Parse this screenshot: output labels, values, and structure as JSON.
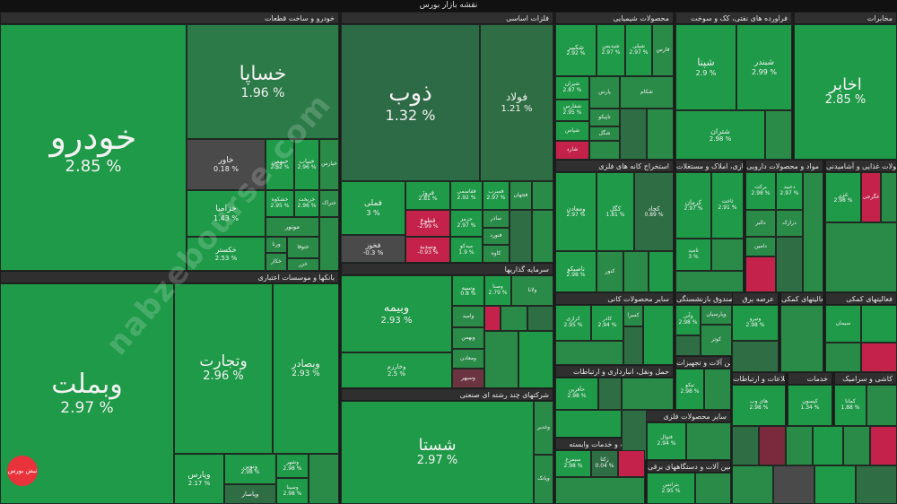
{
  "header": {
    "title": "نقشه بازار بورس"
  },
  "watermark": "nabzebourse.com",
  "logo_text": "نبض بورس",
  "colors": {
    "green_strong": "#1e9e4a",
    "green": "#2a8a48",
    "green_dim": "#2f6e45",
    "gray": "#4a4a4a",
    "red": "#c4224a",
    "dark_red": "#7a2a3c"
  },
  "chart_data": {
    "type": "treemap",
    "sectors": [
      {
        "name": "خودرو و ساخت قطعات",
        "stocks": [
          {
            "name": "خودرو",
            "value": "2.85 %"
          },
          {
            "name": "خساپا",
            "value": "1.96 %"
          },
          {
            "name": "خاور",
            "value": "0.18 %"
          },
          {
            "name": "خبهمن",
            "value": "2.52 %"
          },
          {
            "name": "خنباب",
            "value": "2.96 %"
          },
          {
            "name": "خزامیا",
            "value": "1.43 %"
          },
          {
            "name": "خشکوه",
            "value": "2.95 %"
          },
          {
            "name": "خریخت",
            "value": "2.96 %"
          },
          {
            "name": "خکستر",
            "value": "2.53 %"
          },
          {
            "name": "ختوقا",
            "value": ""
          },
          {
            "name": "خکار",
            "value": ""
          },
          {
            "name": "خزر",
            "value": ""
          },
          {
            "name": "خمهر",
            "value": ""
          },
          {
            "name": "خپارس",
            "value": ""
          },
          {
            "name": "ختراک",
            "value": ""
          },
          {
            "name": "موتور",
            "value": ""
          },
          {
            "name": "ورنا",
            "value": ""
          }
        ]
      },
      {
        "name": "فلزات اساسی",
        "stocks": [
          {
            "name": "ذوب",
            "value": "1.32 %"
          },
          {
            "name": "فولاد",
            "value": "1.21 %"
          },
          {
            "name": "فملی",
            "value": "3 %"
          },
          {
            "name": "فروژ",
            "value": "2.81 %"
          },
          {
            "name": "فقاسمی",
            "value": "2.92 %"
          },
          {
            "name": "فسرب",
            "value": "2.97 %"
          },
          {
            "name": "فخوز",
            "value": "-0.3 %"
          },
          {
            "name": "قطوع",
            "value": "-2.99 %"
          },
          {
            "name": "حرمز",
            "value": "2.97 %"
          },
          {
            "name": "وسدید",
            "value": "-0.93 %"
          },
          {
            "name": "میدکو",
            "value": "1.9 %"
          },
          {
            "name": "فجهان",
            "value": ""
          },
          {
            "name": "فپنتا",
            "value": ""
          },
          {
            "name": "فنورد",
            "value": ""
          },
          {
            "name": "فخاس",
            "value": ""
          },
          {
            "name": "فولاژ",
            "value": ""
          },
          {
            "name": "کاوه",
            "value": ""
          },
          {
            "name": "ساذر",
            "value": ""
          }
        ]
      },
      {
        "name": "محصولات شیمیایی",
        "stocks": [
          {
            "name": "شکبیر",
            "value": "2.92 %"
          },
          {
            "name": "شپدیس",
            "value": "2.97 %"
          },
          {
            "name": "شپلی",
            "value": "2.97 %"
          },
          {
            "name": "فارس",
            "value": ""
          },
          {
            "name": "شیران",
            "value": "2.87 %"
          },
          {
            "name": "پارس",
            "value": ""
          },
          {
            "name": "شکام",
            "value": ""
          },
          {
            "name": "شفارس",
            "value": "2.95 %"
          },
          {
            "name": "تاپیکو",
            "value": ""
          },
          {
            "name": "شپاس",
            "value": ""
          },
          {
            "name": "شگل",
            "value": ""
          },
          {
            "name": "شاراک",
            "value": ""
          },
          {
            "name": "شارد",
            "value": ""
          }
        ]
      },
      {
        "name": "فراورده های نفتی، کک و سوخت",
        "stocks": [
          {
            "name": "شپنا",
            "value": "2.9 %"
          },
          {
            "name": "شبندر",
            "value": "2.99 %"
          },
          {
            "name": "شتران",
            "value": "2.98 %"
          }
        ]
      },
      {
        "name": "مخابرات",
        "stocks": [
          {
            "name": "اخابر",
            "value": "2.85 %"
          }
        ]
      },
      {
        "name": "بانکها و موسسات اعتباری",
        "stocks": [
          {
            "name": "وبملت",
            "value": "2.97 %"
          },
          {
            "name": "وتجارت",
            "value": "2.96 %"
          },
          {
            "name": "وبصادر",
            "value": "2.93 %"
          },
          {
            "name": "وپارس",
            "value": "2.17 %"
          },
          {
            "name": "ونوین",
            "value": "2.98 %"
          },
          {
            "name": "وشهر",
            "value": "2.98 %"
          },
          {
            "name": "وسینا",
            "value": "2.98 %"
          },
          {
            "name": "وپاسار",
            "value": ""
          }
        ]
      },
      {
        "name": "سرمایه گذاریها",
        "stocks": [
          {
            "name": "وصنا",
            "value": "2.79 %"
          },
          {
            "name": "وسپه",
            "value": "0.8 %"
          },
          {
            "name": "وبیمه",
            "value": "2.93 %"
          },
          {
            "name": "وامید",
            "value": ""
          },
          {
            "name": "ولانا",
            "value": ""
          },
          {
            "name": "وخارزم",
            "value": "2.5 %"
          },
          {
            "name": "وبهمن",
            "value": ""
          },
          {
            "name": "ومعادن",
            "value": ""
          },
          {
            "name": "وسپهر",
            "value": ""
          }
        ]
      },
      {
        "name": "شرکتهای چند رشته ای صنعتی",
        "stocks": [
          {
            "name": "شستا",
            "value": "2.97 %"
          },
          {
            "name": "وغدیر",
            "value": ""
          },
          {
            "name": "وپانک",
            "value": ""
          }
        ]
      },
      {
        "name": "استخراج کانه های فلزی",
        "stocks": [
          {
            "name": "ومعادن",
            "value": "2.97 %"
          },
          {
            "name": "کگل",
            "value": "1.81 %"
          },
          {
            "name": "کچاد",
            "value": "0.89 %"
          },
          {
            "name": "تاصیکو",
            "value": "2.98 %"
          },
          {
            "name": "کنور",
            "value": ""
          }
        ]
      },
      {
        "name": "انبوه سازی، املاک و مستغلات",
        "stocks": [
          {
            "name": "کرمان",
            "value": "2.97 %"
          },
          {
            "name": "ثامید",
            "value": "3 %"
          }
        ]
      },
      {
        "name": "مواد و محصولات دارویی",
        "stocks": [
          {
            "name": "برکت",
            "value": "2.98 %"
          },
          {
            "name": "دعبید",
            "value": "2.97 %"
          },
          {
            "name": "دالبر",
            "value": ""
          },
          {
            "name": "دلر",
            "value": ""
          },
          {
            "name": "دامین",
            "value": ""
          },
          {
            "name": "درازک",
            "value": ""
          },
          {
            "name": "ثاخت",
            "value": "2.91 %"
          }
        ]
      },
      {
        "name": "محصولات غذایی و آشامیدنی",
        "stocks": [
          {
            "name": "غزر",
            "value": "2.98 %"
          },
          {
            "name": "غگرجی",
            "value": ""
          }
        ]
      },
      {
        "name": "سایر محصولات کانی",
        "stocks": [
          {
            "name": "کرازی",
            "value": "2.95 %"
          },
          {
            "name": "کاذر",
            "value": "2.94 %"
          },
          {
            "name": "کسرا",
            "value": ""
          }
        ]
      },
      {
        "name": "بیمه وصندوق بازنشستگی",
        "stocks": [
          {
            "name": "وآتی",
            "value": "2.98 %"
          },
          {
            "name": "وپارسیان",
            "value": ""
          },
          {
            "name": "کوثر",
            "value": ""
          }
        ]
      },
      {
        "name": "عرضه برق",
        "stocks": [
          {
            "name": "ونیرو",
            "value": "2.98 %"
          }
        ]
      },
      {
        "name": "فعالیتهای کمکی",
        "stocks": [
          {
            "name": "سیمان",
            "value": ""
          }
        ]
      },
      {
        "name": "حمل ونقل، انبارداری و ارتباطات",
        "stocks": [
          {
            "name": "حآفرین",
            "value": "2.98 %"
          }
        ]
      },
      {
        "name": "ماشین آلات و تجهیزات",
        "stocks": [
          {
            "name": "تیکو",
            "value": "2.98 %"
          }
        ]
      },
      {
        "name": "اطلاعات و ارتباطات",
        "stocks": [
          {
            "name": "های وب",
            "value": "2.98 %"
          }
        ]
      },
      {
        "name": "خدمات",
        "stocks": [
          {
            "name": "کیسون",
            "value": "1.34 %"
          }
        ]
      },
      {
        "name": "کاشی و سرامیک",
        "stocks": [
          {
            "name": "کمانا",
            "value": "1.88 %"
          }
        ]
      },
      {
        "name": "سایر محصولات فلزی",
        "stocks": [
          {
            "name": "فنوال",
            "value": "2.94 %"
          }
        ]
      },
      {
        "name": "زراعت و خدمات وابسته",
        "stocks": [
          {
            "name": "سیمرغ",
            "value": "2.98 %"
          },
          {
            "name": "زکثا",
            "value": "0.04 %"
          }
        ]
      },
      {
        "name": "ماشین آلات و دستگاههای برقی",
        "stocks": [
          {
            "name": "بترانس",
            "value": "2.95 %"
          }
        ]
      }
    ]
  },
  "labels": {
    "t1": "خودرو و ساخت قطعات",
    "t2": "فلزات اساسی",
    "t3": "محصولات شیمیایی",
    "t4": "فراورده های نفتی، کک و سوخت",
    "t5": "مخابرات",
    "t6": "بانکها و موسسات اعتباری",
    "t7": "سرمایه گذاریها",
    "t8": "شرکتهای چند رشته ای صنعتی",
    "t9": "استخراج کانه های فلزی",
    "t10": "انبوه سازی، املاک و مستغلات",
    "t11": "مواد و محصولات دارویی",
    "t12": "محصولات غذایی و آشامیدنی",
    "t13": "سایر محصولات کانی",
    "t14": "بیمه وصندوق بازنشستگی",
    "t15": "عرضه برق",
    "t16": "فعالیتهای کمکی",
    "t17": "حمل ونقل، انبارداری و ارتباطات",
    "t18": "ماشین آلات و تجهیزات",
    "t19": "اطلاعات و ارتباطات",
    "t20": "خدمات",
    "t21": "کاشی و سرامیک",
    "t22": "سایر محصولات فلزی",
    "t23": "زراعت و خدمات وابسته",
    "t24": "ماشین آلات و دستگاههای برقی"
  }
}
